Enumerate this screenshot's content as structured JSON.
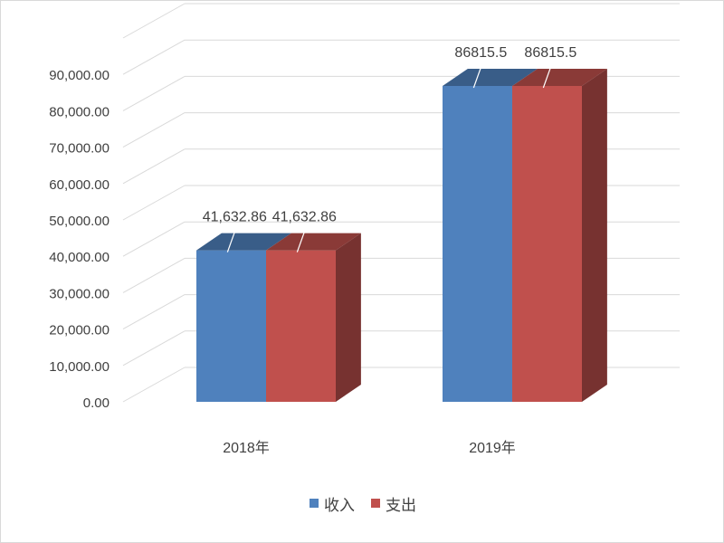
{
  "chart_data": {
    "type": "bar",
    "style": "3d-clustered-column",
    "categories": [
      "2018年",
      "2019年"
    ],
    "series": [
      {
        "name": "收入",
        "values": [
          41632.86,
          86815.5
        ],
        "labels": [
          "41,632.86",
          "86815.5"
        ],
        "color": "#4f81bd"
      },
      {
        "name": "支出",
        "values": [
          41632.86,
          86815.5
        ],
        "labels": [
          "41,632.86",
          "86815.5"
        ],
        "color": "#c0504d"
      }
    ],
    "yticks": [
      "0.00",
      "10,000.00",
      "20,000.00",
      "30,000.00",
      "40,000.00",
      "50,000.00",
      "60,000.00",
      "70,000.00",
      "80,000.00",
      "90,000.00"
    ],
    "ylim": [
      0,
      100000
    ],
    "grid": true,
    "legend_position": "bottom",
    "title": "",
    "xlabel": "",
    "ylabel": ""
  }
}
